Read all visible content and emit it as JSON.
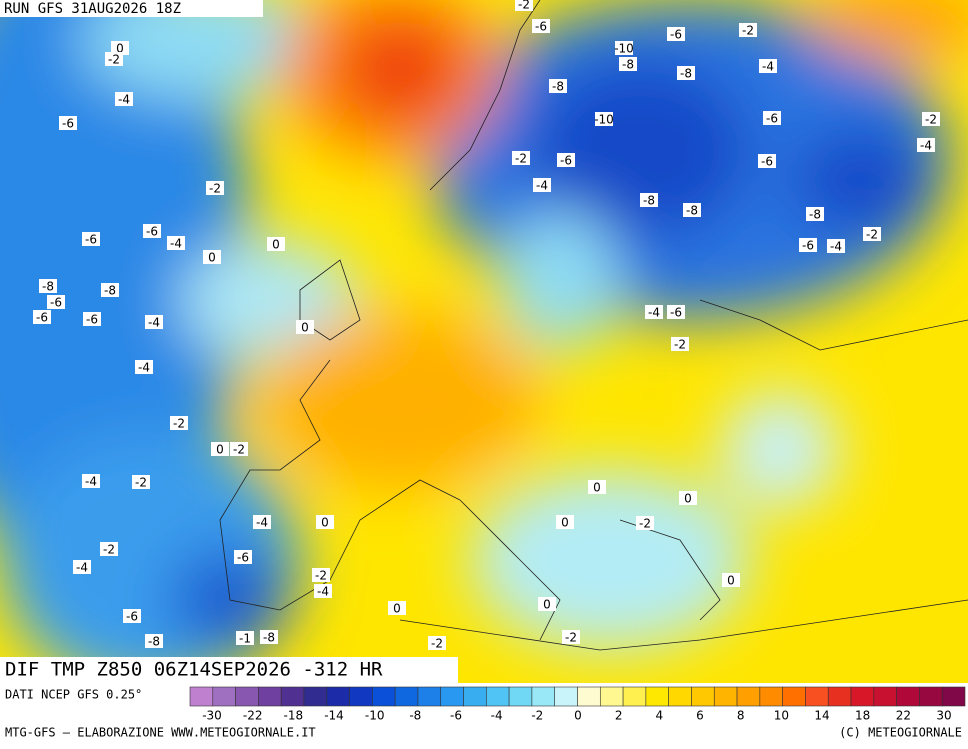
{
  "header": {
    "title": "RUN GFS 31AUG2026 18Z"
  },
  "map": {
    "subtitle": "DIF TMP Z850 06Z14SEP2026 -312 HR",
    "contour_labels": [
      -2,
      -6,
      0,
      -2,
      -10,
      -6,
      -2,
      -8,
      -8,
      -4,
      -4,
      -8,
      -6,
      -10,
      -6,
      -2,
      -4,
      -2,
      -6,
      -6,
      -2,
      -4,
      -8,
      -8,
      -8,
      -6,
      -6,
      -4,
      0,
      0,
      -6,
      -4,
      -2,
      -8,
      -8,
      -6,
      -6,
      -6,
      -4,
      -4,
      -6,
      0,
      -2,
      -4,
      -2,
      0,
      -2,
      -4,
      -2,
      0,
      0,
      -4,
      0,
      0,
      -2,
      -2,
      -6,
      -4,
      -2,
      -4,
      0,
      0,
      0,
      -6,
      -8,
      -1,
      -8,
      -2,
      -2
    ]
  },
  "colorbar": {
    "source": "DATI NCEP GFS 0.25°",
    "colors": [
      "#c080d0",
      "#a070c0",
      "#8858b0",
      "#7040a0",
      "#503090",
      "#302c90",
      "#1c2ca8",
      "#1038c0",
      "#0a50d8",
      "#1068e0",
      "#1c80e8",
      "#2898f0",
      "#38aef0",
      "#50c4f4",
      "#70d8f4",
      "#98e8f8",
      "#c8f4fa",
      "#fffbd0",
      "#fff890",
      "#fff050",
      "#ffe800",
      "#ffd800",
      "#ffc800",
      "#ffb400",
      "#ffa000",
      "#ff8c00",
      "#ff7000",
      "#f85020",
      "#e83020",
      "#d81828",
      "#c81030",
      "#b00838",
      "#980840",
      "#800848"
    ],
    "ticks": [
      -30,
      -22,
      -18,
      -14,
      -10,
      -8,
      -6,
      -4,
      -2,
      0,
      2,
      4,
      6,
      8,
      10,
      14,
      18,
      22,
      30
    ]
  },
  "footer": {
    "left": "MTG-GFS — ELABORAZIONE WWW.METEOGIORNALE.IT",
    "right": "(C) METEOGIORNALE"
  }
}
